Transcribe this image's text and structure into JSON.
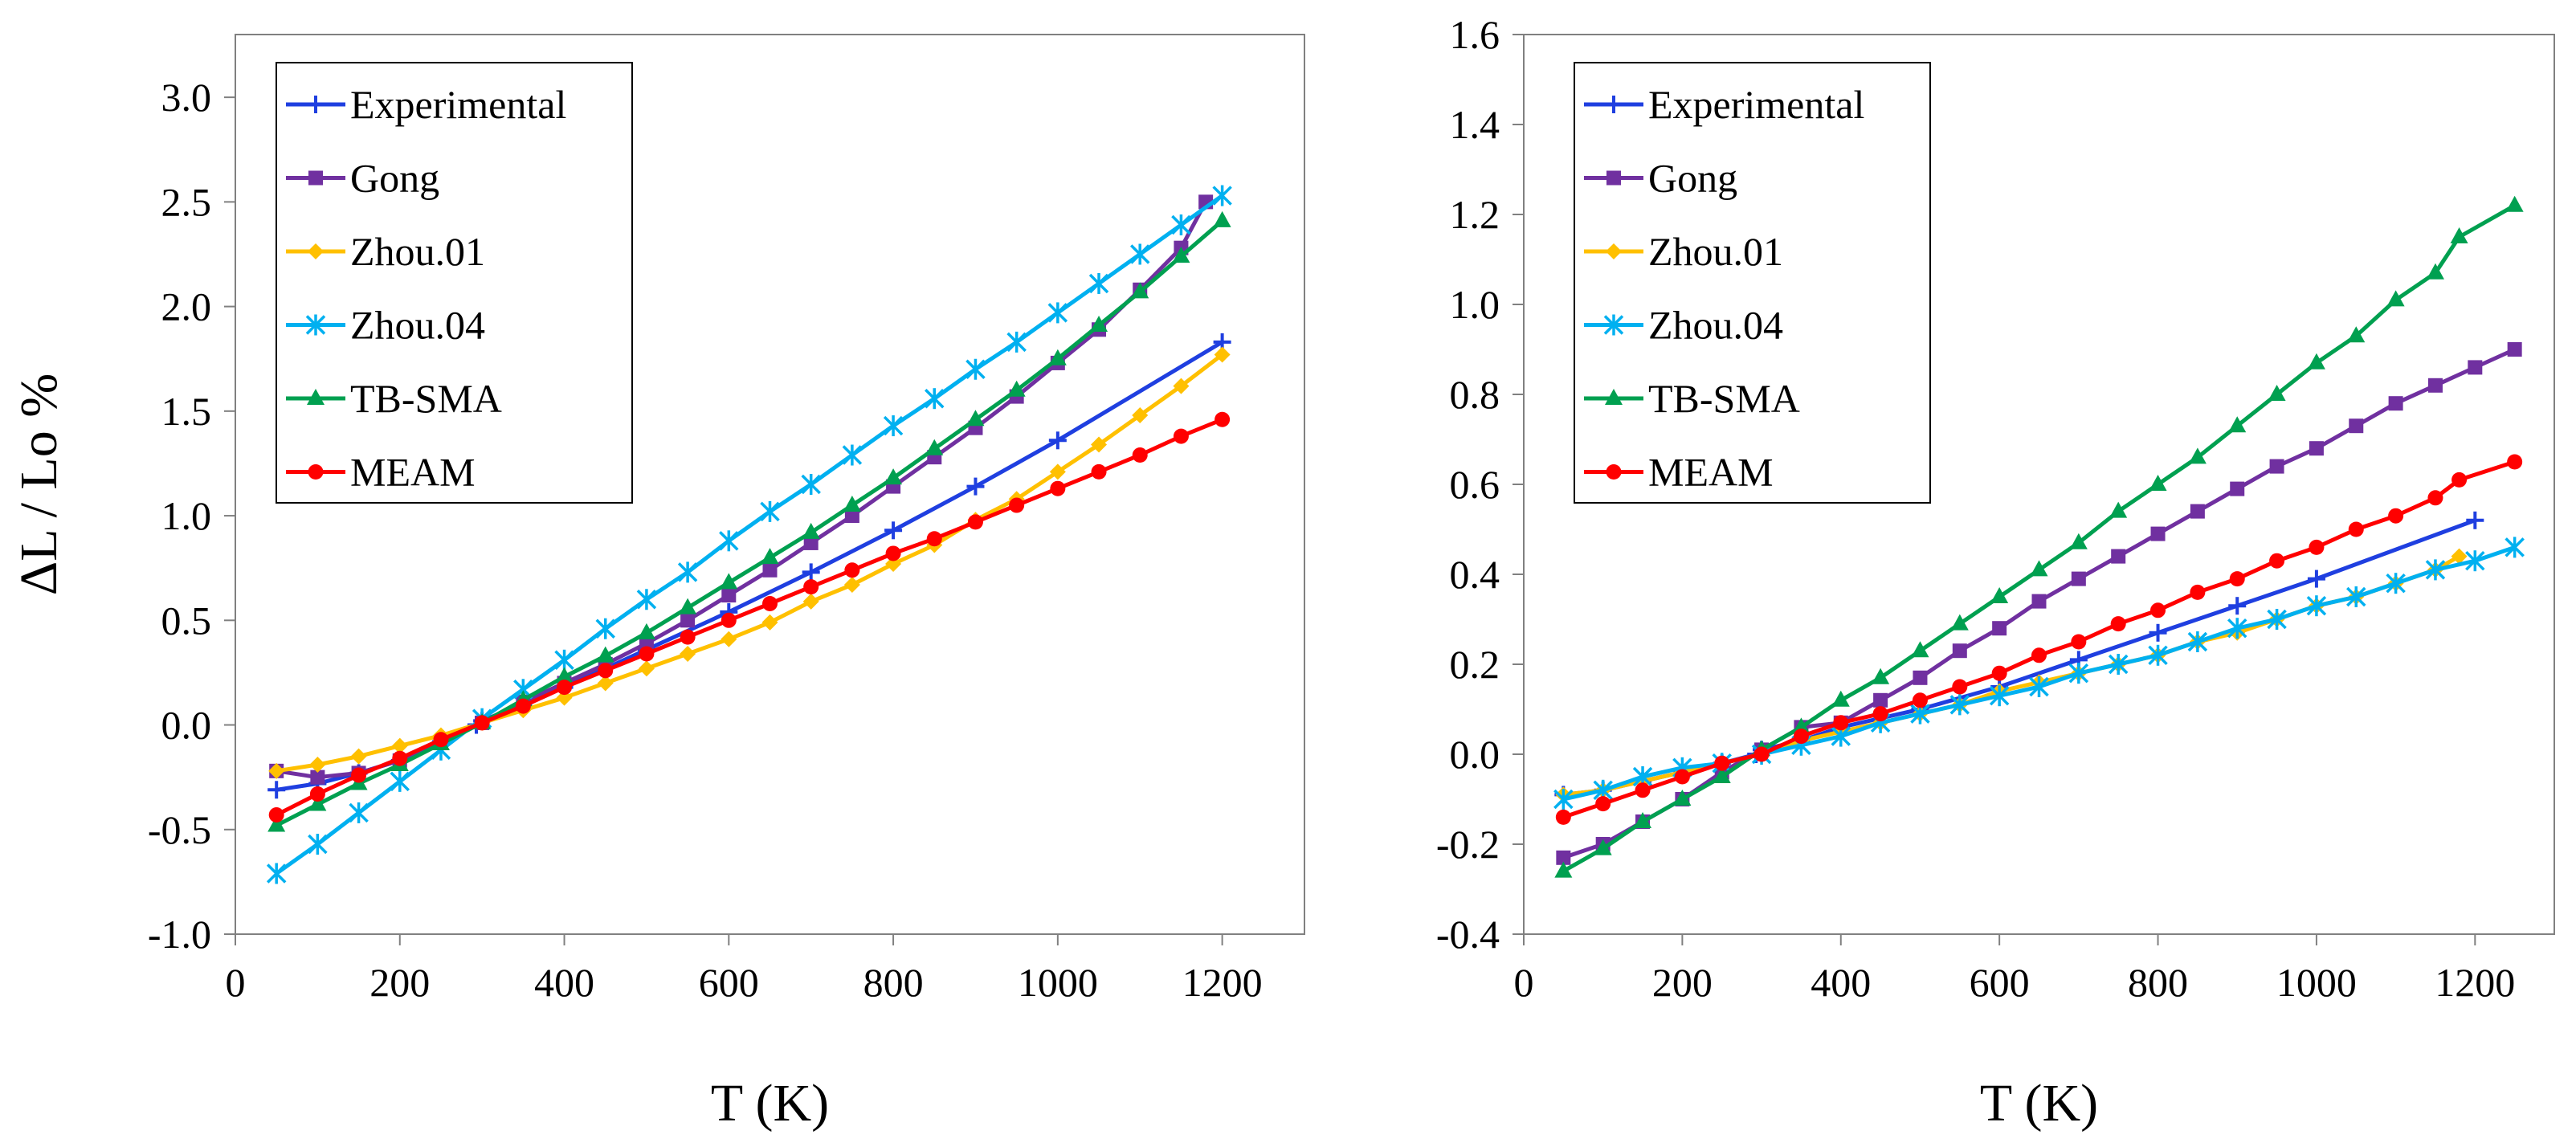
{
  "figure": {
    "panels": 2
  },
  "chart_data": [
    {
      "type": "line",
      "xlabel": "T (K)",
      "ylabel": "ΔL / Lo %",
      "xlim": [
        0,
        1300
      ],
      "ylim": [
        -1.0,
        3.3
      ],
      "xticks": [
        0,
        200,
        400,
        600,
        800,
        1000,
        1200
      ],
      "xtick_labels": [
        "0",
        "200",
        "400",
        "600",
        "800",
        "1000",
        "1200"
      ],
      "yticks": [
        -1.0,
        -0.5,
        0.0,
        0.5,
        1.0,
        1.5,
        2.0,
        2.5,
        3.0
      ],
      "ytick_labels": [
        "-1.0",
        "-0.5",
        "0.0",
        "0.5",
        "1.0",
        "1.5",
        "2.0",
        "2.5",
        "3.0"
      ],
      "grid": false,
      "legend_position": "top-left",
      "series": [
        {
          "name": "Experimental",
          "color": "#1f3fe0",
          "marker": "plus",
          "x": [
            50,
            100,
            150,
            200,
            250,
            293,
            300,
            350,
            400,
            500,
            600,
            700,
            800,
            900,
            1000,
            1200
          ],
          "y": [
            -0.31,
            -0.28,
            -0.23,
            -0.17,
            -0.08,
            0.0,
            0.02,
            0.1,
            0.18,
            0.36,
            0.54,
            0.73,
            0.93,
            1.14,
            1.36,
            1.83
          ]
        },
        {
          "name": "Gong",
          "color": "#7030a0",
          "marker": "square",
          "x": [
            50,
            100,
            150,
            200,
            250,
            300,
            350,
            400,
            450,
            500,
            550,
            600,
            650,
            700,
            750,
            800,
            850,
            900,
            950,
            1000,
            1050,
            1100,
            1150,
            1180
          ],
          "y": [
            -0.22,
            -0.25,
            -0.23,
            -0.17,
            -0.08,
            0.01,
            0.11,
            0.2,
            0.29,
            0.39,
            0.5,
            0.62,
            0.74,
            0.87,
            1.0,
            1.14,
            1.28,
            1.42,
            1.57,
            1.73,
            1.89,
            2.08,
            2.28,
            2.5
          ]
        },
        {
          "name": "Zhou.01",
          "color": "#ffc000",
          "marker": "diamond",
          "x": [
            50,
            100,
            150,
            200,
            250,
            300,
            350,
            400,
            450,
            500,
            550,
            600,
            650,
            700,
            750,
            800,
            850,
            900,
            950,
            1000,
            1050,
            1100,
            1150,
            1200
          ],
          "y": [
            -0.22,
            -0.19,
            -0.15,
            -0.1,
            -0.05,
            0.01,
            0.07,
            0.13,
            0.2,
            0.27,
            0.34,
            0.41,
            0.49,
            0.59,
            0.67,
            0.77,
            0.86,
            0.98,
            1.08,
            1.21,
            1.34,
            1.48,
            1.62,
            1.77
          ]
        },
        {
          "name": "Zhou.04",
          "color": "#00b0f0",
          "marker": "star",
          "x": [
            50,
            100,
            150,
            200,
            250,
            300,
            350,
            400,
            450,
            500,
            550,
            600,
            650,
            700,
            750,
            800,
            850,
            900,
            950,
            1000,
            1050,
            1100,
            1150,
            1200
          ],
          "y": [
            -0.71,
            -0.57,
            -0.42,
            -0.27,
            -0.12,
            0.03,
            0.17,
            0.31,
            0.46,
            0.6,
            0.73,
            0.88,
            1.02,
            1.15,
            1.29,
            1.43,
            1.56,
            1.7,
            1.83,
            1.97,
            2.11,
            2.25,
            2.39,
            2.53
          ]
        },
        {
          "name": "TB-SMA",
          "color": "#00a050",
          "marker": "triangle",
          "x": [
            50,
            100,
            150,
            200,
            250,
            300,
            350,
            400,
            450,
            500,
            550,
            600,
            650,
            700,
            750,
            800,
            850,
            900,
            950,
            1000,
            1050,
            1100,
            1150,
            1200
          ],
          "y": [
            -0.48,
            -0.38,
            -0.28,
            -0.19,
            -0.09,
            0.01,
            0.12,
            0.23,
            0.33,
            0.44,
            0.56,
            0.68,
            0.8,
            0.92,
            1.05,
            1.18,
            1.32,
            1.46,
            1.6,
            1.75,
            1.91,
            2.07,
            2.24,
            2.41
          ]
        },
        {
          "name": "MEAM",
          "color": "#ff0000",
          "marker": "circle",
          "x": [
            50,
            100,
            150,
            200,
            250,
            300,
            350,
            400,
            450,
            500,
            550,
            600,
            650,
            700,
            750,
            800,
            850,
            900,
            950,
            1000,
            1050,
            1100,
            1150,
            1200
          ],
          "y": [
            -0.43,
            -0.33,
            -0.24,
            -0.16,
            -0.07,
            0.01,
            0.09,
            0.18,
            0.26,
            0.34,
            0.42,
            0.5,
            0.58,
            0.66,
            0.74,
            0.82,
            0.89,
            0.97,
            1.05,
            1.13,
            1.21,
            1.29,
            1.38,
            1.46
          ]
        }
      ]
    },
    {
      "type": "line",
      "xlabel": "T (K)",
      "ylabel": "",
      "xlim": [
        0,
        1300
      ],
      "ylim": [
        -0.4,
        1.6
      ],
      "xticks": [
        0,
        200,
        400,
        600,
        800,
        1000,
        1200
      ],
      "xtick_labels": [
        "0",
        "200",
        "400",
        "600",
        "800",
        "1000",
        "1200"
      ],
      "yticks": [
        -0.4,
        -0.2,
        0.0,
        0.2,
        0.4,
        0.6,
        0.8,
        1.0,
        1.2,
        1.4,
        1.6
      ],
      "ytick_labels": [
        "-0.4",
        "-0.2",
        "0.0",
        "0.2",
        "0.4",
        "0.6",
        "0.8",
        "1.0",
        "1.2",
        "1.4",
        "1.6"
      ],
      "grid": false,
      "legend_position": "top-left",
      "series": [
        {
          "name": "Experimental",
          "color": "#1f3fe0",
          "marker": "plus",
          "x": [
            50,
            100,
            150,
            200,
            250,
            293,
            300,
            350,
            400,
            500,
            600,
            700,
            800,
            900,
            1000,
            1200
          ],
          "y": [
            -0.09,
            -0.08,
            -0.06,
            -0.04,
            -0.02,
            0.0,
            0.01,
            0.03,
            0.06,
            0.1,
            0.15,
            0.21,
            0.27,
            0.33,
            0.39,
            0.52
          ]
        },
        {
          "name": "Gong",
          "color": "#7030a0",
          "marker": "square",
          "x": [
            50,
            100,
            150,
            200,
            250,
            300,
            350,
            400,
            450,
            500,
            550,
            600,
            650,
            700,
            750,
            800,
            850,
            900,
            950,
            1000,
            1050,
            1100,
            1150,
            1200,
            1250
          ],
          "y": [
            -0.23,
            -0.2,
            -0.15,
            -0.1,
            -0.04,
            0.01,
            0.06,
            0.07,
            0.12,
            0.17,
            0.23,
            0.28,
            0.34,
            0.39,
            0.44,
            0.49,
            0.54,
            0.59,
            0.64,
            0.68,
            0.73,
            0.78,
            0.82,
            0.86,
            0.9
          ]
        },
        {
          "name": "Zhou.01",
          "color": "#ffc000",
          "marker": "diamond",
          "x": [
            50,
            100,
            150,
            200,
            250,
            300,
            350,
            400,
            450,
            500,
            550,
            600,
            650,
            700,
            750,
            800,
            850,
            900,
            950,
            1000,
            1050,
            1100,
            1150,
            1180
          ],
          "y": [
            -0.09,
            -0.08,
            -0.06,
            -0.04,
            -0.02,
            0.0,
            0.03,
            0.05,
            0.07,
            0.09,
            0.11,
            0.14,
            0.16,
            0.18,
            0.2,
            0.22,
            0.25,
            0.27,
            0.3,
            0.33,
            0.35,
            0.38,
            0.41,
            0.44
          ]
        },
        {
          "name": "Zhou.04",
          "color": "#00b0f0",
          "marker": "star",
          "x": [
            50,
            100,
            150,
            200,
            250,
            300,
            350,
            400,
            450,
            500,
            550,
            600,
            650,
            700,
            750,
            800,
            850,
            900,
            950,
            1000,
            1050,
            1100,
            1150,
            1200,
            1250
          ],
          "y": [
            -0.1,
            -0.08,
            -0.05,
            -0.03,
            -0.02,
            0.0,
            0.02,
            0.04,
            0.07,
            0.09,
            0.11,
            0.13,
            0.15,
            0.18,
            0.2,
            0.22,
            0.25,
            0.28,
            0.3,
            0.33,
            0.35,
            0.38,
            0.41,
            0.43,
            0.46
          ]
        },
        {
          "name": "TB-SMA",
          "color": "#00a050",
          "marker": "triangle",
          "x": [
            50,
            100,
            150,
            200,
            250,
            300,
            350,
            400,
            450,
            500,
            550,
            600,
            650,
            700,
            750,
            800,
            850,
            900,
            950,
            1000,
            1050,
            1100,
            1150,
            1180,
            1250
          ],
          "y": [
            -0.26,
            -0.21,
            -0.15,
            -0.1,
            -0.05,
            0.01,
            0.06,
            0.12,
            0.17,
            0.23,
            0.29,
            0.35,
            0.41,
            0.47,
            0.54,
            0.6,
            0.66,
            0.73,
            0.8,
            0.87,
            0.93,
            1.01,
            1.07,
            1.15,
            1.22
          ]
        },
        {
          "name": "MEAM",
          "color": "#ff0000",
          "marker": "circle",
          "x": [
            50,
            100,
            150,
            200,
            250,
            300,
            350,
            400,
            450,
            500,
            550,
            600,
            650,
            700,
            750,
            800,
            850,
            900,
            950,
            1000,
            1050,
            1100,
            1150,
            1180,
            1250
          ],
          "y": [
            -0.14,
            -0.11,
            -0.08,
            -0.05,
            -0.02,
            0.0,
            0.04,
            0.07,
            0.09,
            0.12,
            0.15,
            0.18,
            0.22,
            0.25,
            0.29,
            0.32,
            0.36,
            0.39,
            0.43,
            0.46,
            0.5,
            0.53,
            0.57,
            0.61,
            0.65
          ]
        }
      ]
    }
  ]
}
